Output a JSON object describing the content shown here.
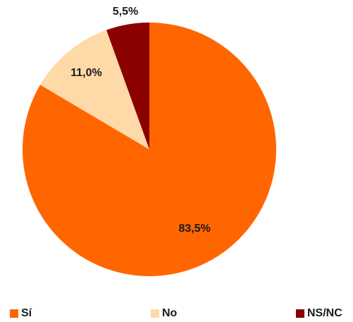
{
  "chart_data": {
    "type": "pie",
    "title": "",
    "start_angle_deg": 0,
    "direction": "clockwise",
    "legend_position": "bottom",
    "slices": [
      {
        "label": "Sí",
        "value": 83.5,
        "value_label": "83,5%",
        "color": "#ff6600"
      },
      {
        "label": "No",
        "value": 11.0,
        "value_label": "11,0%",
        "color": "#ffd9a8"
      },
      {
        "label": "NS/NC",
        "value": 5.5,
        "value_label": "5,5%",
        "color": "#8b0000"
      }
    ]
  }
}
